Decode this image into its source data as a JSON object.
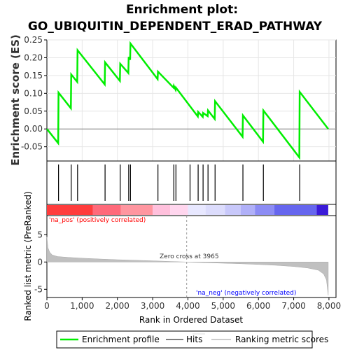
{
  "title_line1": "Enrichment plot:",
  "title_line2": "GO_UBIQUITIN_DEPENDENT_ERAD_PATHWAY",
  "colors": {
    "enrichment": "#00ee00",
    "hits": "#000000",
    "metric_fill": "#c0c0c0",
    "pos_label": "#ff0000",
    "neg_label": "#0000ff"
  },
  "annotations": {
    "pos_label": "'na_pos' (positively correlated)",
    "neg_label": "'na_neg' (negatively correlated)",
    "zero_cross": "Zero cross at 3965"
  },
  "legend": {
    "enrichment": "Enrichment profile",
    "hits": "Hits",
    "ranking": "Ranking metric scores"
  },
  "chart_data": [
    {
      "type": "line",
      "name": "enrichment-profile",
      "ylabel": "Enrichment score (ES)",
      "ylim": [
        -0.09,
        0.25
      ],
      "yticks": [
        -0.05,
        0.0,
        0.05,
        0.1,
        0.15,
        0.2,
        0.25
      ],
      "ytick_labels": [
        "-0.05",
        "0.00",
        "0.05",
        "0.10",
        "0.15",
        "0.20",
        "0.25"
      ],
      "xlim": [
        0,
        8200
      ],
      "grid": true,
      "points": [
        [
          0,
          0.0
        ],
        [
          320,
          -0.04
        ],
        [
          330,
          0.102
        ],
        [
          680,
          0.058
        ],
        [
          690,
          0.153
        ],
        [
          860,
          0.132
        ],
        [
          870,
          0.221
        ],
        [
          1640,
          0.125
        ],
        [
          1650,
          0.187
        ],
        [
          2070,
          0.135
        ],
        [
          2080,
          0.183
        ],
        [
          2310,
          0.157
        ],
        [
          2320,
          0.202
        ],
        [
          2360,
          0.194
        ],
        [
          2370,
          0.24
        ],
        [
          3140,
          0.14
        ],
        [
          3150,
          0.161
        ],
        [
          3590,
          0.116
        ],
        [
          3600,
          0.121
        ],
        [
          3650,
          0.11
        ],
        [
          3660,
          0.116
        ],
        [
          4280,
          0.035
        ],
        [
          4290,
          0.048
        ],
        [
          4420,
          0.034
        ],
        [
          4430,
          0.045
        ],
        [
          4560,
          0.036
        ],
        [
          4570,
          0.052
        ],
        [
          4760,
          0.028
        ],
        [
          4770,
          0.078
        ],
        [
          5550,
          -0.022
        ],
        [
          5560,
          0.038
        ],
        [
          6130,
          -0.036
        ],
        [
          6140,
          0.052
        ],
        [
          7160,
          -0.08
        ],
        [
          7170,
          0.104
        ],
        [
          7980,
          0.0
        ]
      ]
    },
    {
      "type": "scatter",
      "name": "hits",
      "x": [
        330,
        690,
        870,
        1650,
        2080,
        2320,
        2370,
        3150,
        3600,
        3660,
        4060,
        4290,
        4430,
        4570,
        4770,
        5560,
        6140,
        7170
      ]
    },
    {
      "type": "area",
      "name": "ranked-list-metric",
      "ylabel": "Ranked list metric (PreRanked)",
      "xlabel": "Rank in Ordered Dataset",
      "ylim": [
        -6.5,
        8.5
      ],
      "yticks": [
        -5,
        0,
        5
      ],
      "ytick_labels": [
        "-5",
        "0",
        "5"
      ],
      "xticks": [
        0,
        1000,
        2000,
        3000,
        4000,
        5000,
        6000,
        7000,
        8000
      ],
      "xtick_labels": [
        "0",
        "1,000",
        "2,000",
        "3,000",
        "4,000",
        "5,000",
        "6,000",
        "7,000",
        "8,000"
      ],
      "zero_cross": 3965,
      "points": [
        [
          0,
          4.6
        ],
        [
          30,
          2.6
        ],
        [
          80,
          1.8
        ],
        [
          150,
          1.3
        ],
        [
          300,
          1.0
        ],
        [
          600,
          0.85
        ],
        [
          1000,
          0.7
        ],
        [
          1500,
          0.55
        ],
        [
          2000,
          0.42
        ],
        [
          2500,
          0.32
        ],
        [
          3000,
          0.22
        ],
        [
          3500,
          0.1
        ],
        [
          3965,
          0.0
        ],
        [
          4500,
          -0.12
        ],
        [
          5000,
          -0.22
        ],
        [
          5500,
          -0.32
        ],
        [
          6000,
          -0.45
        ],
        [
          6500,
          -0.6
        ],
        [
          7000,
          -0.82
        ],
        [
          7400,
          -1.1
        ],
        [
          7700,
          -1.5
        ],
        [
          7850,
          -2.2
        ],
        [
          7930,
          -3.3
        ],
        [
          7980,
          -6.1
        ]
      ]
    }
  ]
}
